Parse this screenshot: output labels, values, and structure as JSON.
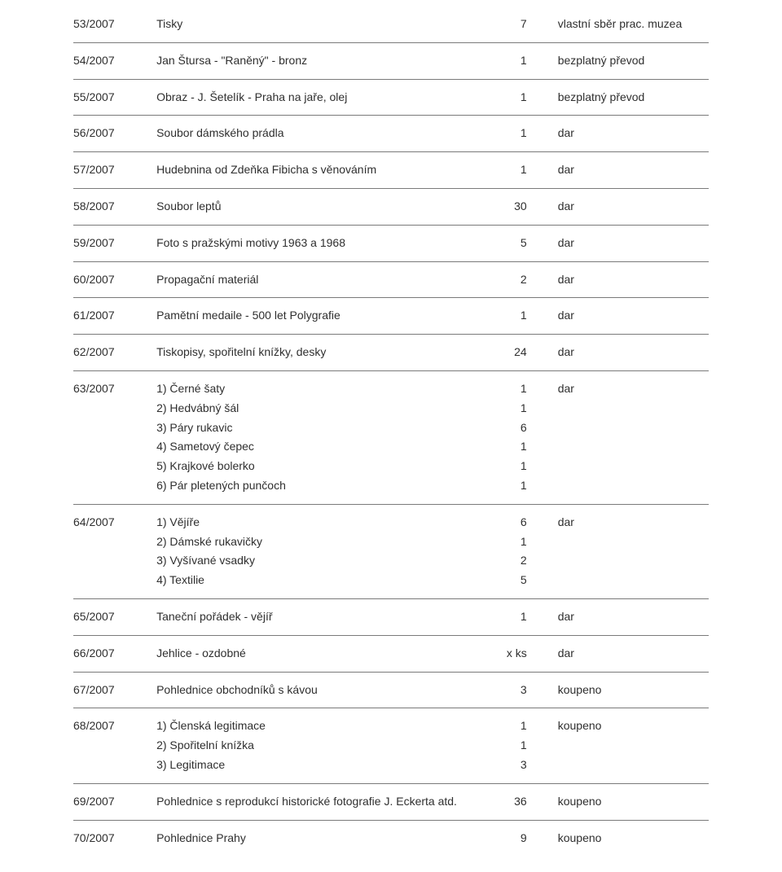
{
  "rows": [
    {
      "id": "53/2007",
      "desc": [
        "Tisky"
      ],
      "qty": [
        "7"
      ],
      "note": "vlastní sběr prac. muzea"
    },
    {
      "id": "54/2007",
      "desc": [
        "Jan Štursa - \"Raněný\" - bronz"
      ],
      "qty": [
        "1"
      ],
      "note": "bezplatný převod"
    },
    {
      "id": "55/2007",
      "desc": [
        "Obraz - J. Šetelík - Praha na jaře, olej"
      ],
      "qty": [
        "1"
      ],
      "note": "bezplatný převod"
    },
    {
      "id": "56/2007",
      "desc": [
        "Soubor dámského prádla"
      ],
      "qty": [
        "1"
      ],
      "note": "dar"
    },
    {
      "id": "57/2007",
      "desc": [
        "Hudebnina od Zdeňka Fibicha s věnováním"
      ],
      "qty": [
        "1"
      ],
      "note": "dar"
    },
    {
      "id": "58/2007",
      "desc": [
        "Soubor leptů"
      ],
      "qty": [
        "30"
      ],
      "note": "dar"
    },
    {
      "id": "59/2007",
      "desc": [
        "Foto s pražskými motivy 1963 a 1968"
      ],
      "qty": [
        "5"
      ],
      "note": "dar"
    },
    {
      "id": "60/2007",
      "desc": [
        "Propagační materiál"
      ],
      "qty": [
        "2"
      ],
      "note": "dar"
    },
    {
      "id": "61/2007",
      "desc": [
        "Pamětní medaile - 500 let Polygrafie"
      ],
      "qty": [
        "1"
      ],
      "note": "dar"
    },
    {
      "id": "62/2007",
      "desc": [
        "Tiskopisy, spořitelní knížky, desky"
      ],
      "qty": [
        "24"
      ],
      "note": "dar"
    },
    {
      "id": "63/2007",
      "desc": [
        "1) Černé šaty",
        "2) Hedvábný šál",
        "3) Páry rukavic",
        "4) Sametový čepec",
        "5) Krajkové bolerko",
        "6) Pár pletených punčoch"
      ],
      "qty": [
        "1",
        "1",
        "6",
        "1",
        "1",
        "1"
      ],
      "note": "dar"
    },
    {
      "id": "64/2007",
      "desc": [
        "1) Vějíře",
        "2) Dámské rukavičky",
        "3) Vyšívané vsadky",
        "4) Textilie"
      ],
      "qty": [
        "6",
        "1",
        "2",
        "5"
      ],
      "note": "dar"
    },
    {
      "id": "65/2007",
      "desc": [
        "Taneční pořádek - vějíř"
      ],
      "qty": [
        "1"
      ],
      "note": "dar"
    },
    {
      "id": "66/2007",
      "desc": [
        "Jehlice - ozdobné"
      ],
      "qty": [
        "x ks"
      ],
      "note": "dar"
    },
    {
      "id": "67/2007",
      "desc": [
        "Pohlednice obchodníků s kávou"
      ],
      "qty": [
        "3"
      ],
      "note": "koupeno"
    },
    {
      "id": "68/2007",
      "desc": [
        "1) Členská legitimace",
        "2) Spořitelní knížka",
        "3) Legitimace"
      ],
      "qty": [
        "1",
        "1",
        "3"
      ],
      "note": "koupeno"
    },
    {
      "id": "69/2007",
      "desc": [
        "Pohlednice s reprodukcí historické fotografie J. Eckerta atd."
      ],
      "qty": [
        "36"
      ],
      "note": "koupeno"
    },
    {
      "id": "70/2007",
      "desc": [
        "Pohlednice Prahy"
      ],
      "qty": [
        "9"
      ],
      "note": "koupeno"
    }
  ]
}
